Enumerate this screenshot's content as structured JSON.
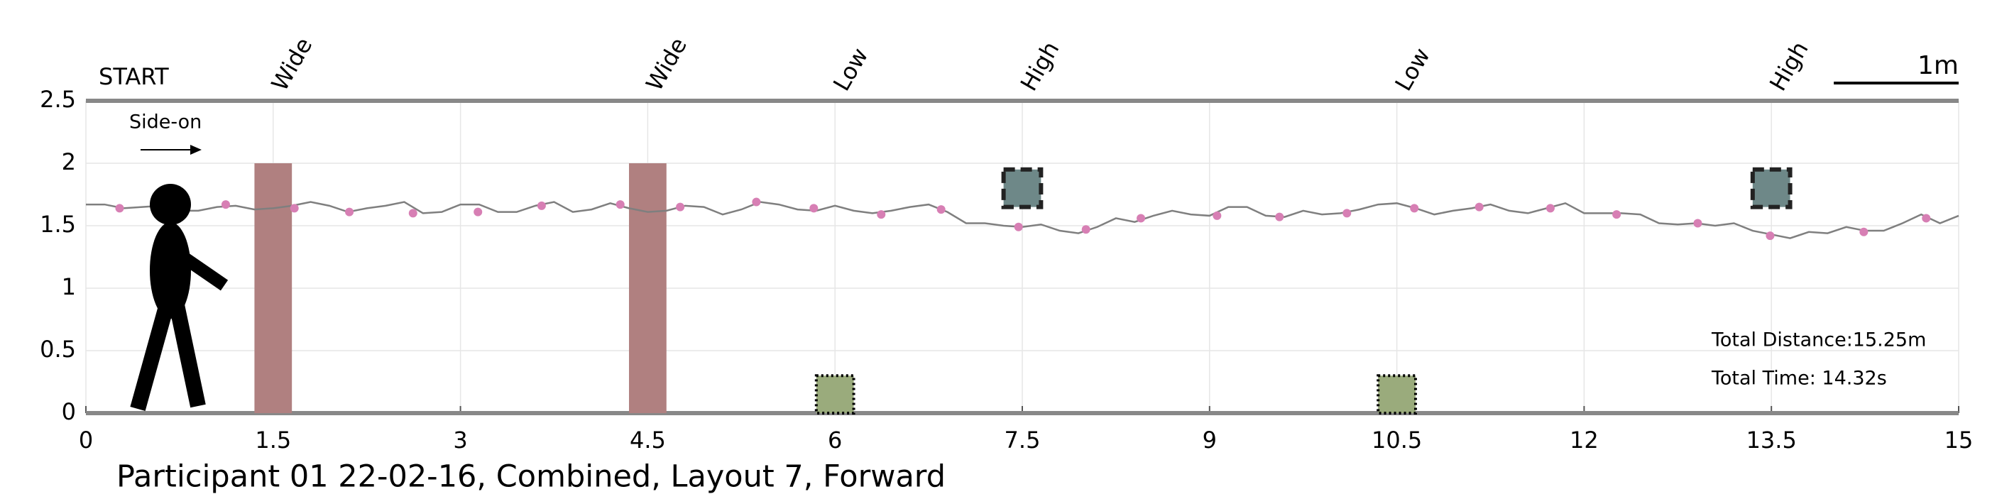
{
  "chart_data": {
    "type": "line",
    "title": "Participant 01 22-02-16, Combined, Layout 7, Forward",
    "xlim": [
      0,
      15
    ],
    "ylim": [
      0,
      2.5
    ],
    "xticks": [
      0,
      1.5,
      3,
      4.5,
      6,
      7.5,
      9,
      10.5,
      12,
      13.5,
      15
    ],
    "yticks": [
      0,
      0.5,
      1,
      1.5,
      2,
      2.5
    ],
    "grid": true,
    "series": [
      {
        "mode": "lines",
        "color": "#7f7f7f",
        "x": [
          0,
          0.15,
          0.3,
          0.45,
          0.6,
          0.75,
          0.9,
          1.05,
          1.2,
          1.35,
          1.5,
          1.65,
          1.8,
          1.95,
          2.1,
          2.25,
          2.4,
          2.55,
          2.7,
          2.85,
          3.0,
          3.15,
          3.3,
          3.45,
          3.6,
          3.75,
          3.9,
          4.05,
          4.2,
          4.35,
          4.5,
          4.65,
          4.8,
          4.95,
          5.1,
          5.25,
          5.4,
          5.55,
          5.7,
          5.85,
          6.0,
          6.15,
          6.3,
          6.45,
          6.6,
          6.75,
          6.9,
          7.05,
          7.2,
          7.35,
          7.5,
          7.65,
          7.8,
          7.95,
          8.1,
          8.25,
          8.4,
          8.55,
          8.7,
          8.85,
          9.0,
          9.15,
          9.3,
          9.45,
          9.6,
          9.75,
          9.9,
          10.05,
          10.2,
          10.35,
          10.5,
          10.65,
          10.8,
          10.95,
          11.1,
          11.25,
          11.4,
          11.55,
          11.7,
          11.85,
          12.0,
          12.15,
          12.3,
          12.45,
          12.6,
          12.75,
          12.9,
          13.05,
          13.2,
          13.35,
          13.5,
          13.65,
          13.8,
          13.95,
          14.1,
          14.25,
          14.4,
          14.55,
          14.7,
          14.85,
          15.0
        ],
        "values": [
          1.67,
          1.67,
          1.64,
          1.65,
          1.66,
          1.62,
          1.62,
          1.65,
          1.66,
          1.63,
          1.64,
          1.66,
          1.69,
          1.66,
          1.61,
          1.64,
          1.66,
          1.69,
          1.6,
          1.61,
          1.67,
          1.67,
          1.61,
          1.61,
          1.66,
          1.69,
          1.61,
          1.63,
          1.68,
          1.64,
          1.61,
          1.62,
          1.66,
          1.65,
          1.59,
          1.63,
          1.69,
          1.67,
          1.63,
          1.62,
          1.66,
          1.62,
          1.6,
          1.62,
          1.65,
          1.67,
          1.61,
          1.52,
          1.52,
          1.5,
          1.49,
          1.51,
          1.46,
          1.44,
          1.49,
          1.56,
          1.53,
          1.58,
          1.62,
          1.59,
          1.58,
          1.65,
          1.65,
          1.58,
          1.57,
          1.62,
          1.59,
          1.6,
          1.63,
          1.67,
          1.68,
          1.64,
          1.59,
          1.62,
          1.64,
          1.67,
          1.62,
          1.6,
          1.64,
          1.68,
          1.6,
          1.6,
          1.6,
          1.59,
          1.52,
          1.51,
          1.52,
          1.5,
          1.52,
          1.46,
          1.43,
          1.4,
          1.45,
          1.44,
          1.49,
          1.46,
          1.46,
          1.52,
          1.59,
          1.52,
          1.58
        ]
      },
      {
        "mode": "markers",
        "color": "#d77fb4",
        "x": [
          0.27,
          1.12,
          1.67,
          2.11,
          2.62,
          3.14,
          3.65,
          4.28,
          4.76,
          5.37,
          5.83,
          6.37,
          6.85,
          7.47,
          8.01,
          8.45,
          9.06,
          9.56,
          10.1,
          10.64,
          11.16,
          11.73,
          12.26,
          12.91,
          13.49,
          14.24,
          14.74
        ],
        "values": [
          1.64,
          1.67,
          1.64,
          1.61,
          1.6,
          1.61,
          1.66,
          1.67,
          1.65,
          1.69,
          1.64,
          1.59,
          1.63,
          1.49,
          1.47,
          1.56,
          1.58,
          1.57,
          1.6,
          1.64,
          1.65,
          1.64,
          1.59,
          1.52,
          1.42,
          1.45,
          1.56
        ]
      }
    ],
    "obstacles": [
      {
        "label": "Wide",
        "x": [
          1.35,
          1.65
        ],
        "y": [
          0,
          2
        ],
        "color": "#b08080",
        "border": "none"
      },
      {
        "label": "Wide",
        "x": [
          4.35,
          4.65
        ],
        "y": [
          0,
          2
        ],
        "color": "#b08080",
        "border": "none"
      },
      {
        "label": "Low",
        "x": [
          5.85,
          6.15
        ],
        "y": [
          0,
          0.3
        ],
        "color": "#9aab7c",
        "border": "dotted"
      },
      {
        "label": "High",
        "x": [
          7.35,
          7.65
        ],
        "y": [
          1.65,
          1.95
        ],
        "color": "#6e8888",
        "border": "dashed"
      },
      {
        "label": "Low",
        "x": [
          10.35,
          10.65
        ],
        "y": [
          0,
          0.3
        ],
        "color": "#9aab7c",
        "border": "dotted"
      },
      {
        "label": "High",
        "x": [
          13.35,
          13.65
        ],
        "y": [
          1.65,
          1.95
        ],
        "color": "#6e8888",
        "border": "dashed"
      }
    ],
    "scale_bar": {
      "label": "1m",
      "length": 1
    },
    "annotations": [
      "START",
      "Side-on",
      "Total Distance:15.25m",
      "Total Time: 14.32s"
    ]
  }
}
